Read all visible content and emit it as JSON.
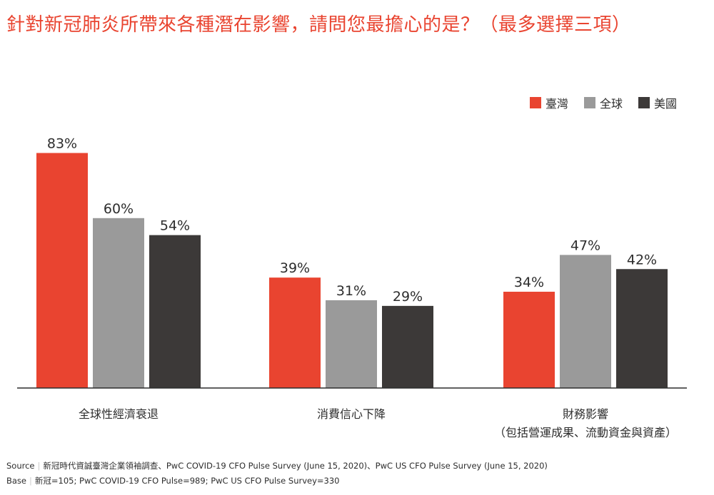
{
  "chart_data": {
    "type": "bar",
    "title": "針對新冠肺炎所帶來各種潛在影響，請問您最擔心的是？（最多選擇三項）",
    "categories": [
      "全球性經濟衰退",
      "消費信心下降",
      "財務影響"
    ],
    "category_sublabels": [
      "",
      "",
      "（包括營運成果、流動資金與資產）"
    ],
    "series": [
      {
        "name": "臺灣",
        "color": "#E94430",
        "values": [
          83,
          39,
          34
        ]
      },
      {
        "name": "全球",
        "color": "#9A9A9A",
        "values": [
          60,
          31,
          47
        ]
      },
      {
        "name": "美國",
        "color": "#3C3938",
        "values": [
          54,
          29,
          42
        ]
      }
    ],
    "value_suffix": "%",
    "ylim": [
      0,
      100
    ],
    "grid": false,
    "legend_position": "top-right"
  },
  "colors": {
    "title": "#E94430",
    "text": "#2d2d2d",
    "axis": "#2d2d2d"
  },
  "footnotes": {
    "source_key": "Source",
    "source_text": "新冠時代資誠臺灣企業領袖調查、PwC COVID-19 CFO Pulse Survey (June 15, 2020)、PwC US CFO Pulse Survey (June 15, 2020)",
    "base_key": "Base",
    "base_text": "新冠=105; PwC COVID-19 CFO Pulse=989; PwC US CFO Pulse Survey=330"
  }
}
